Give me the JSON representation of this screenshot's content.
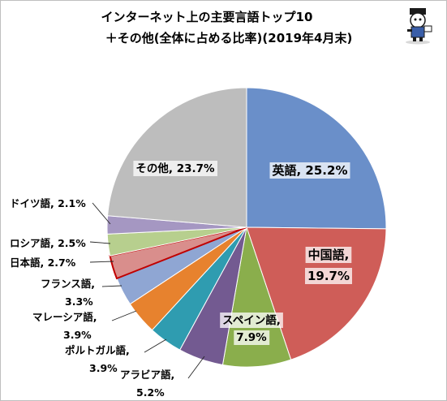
{
  "chart_data": {
    "type": "pie",
    "title": [
      "インターネット上の主要言語トップ10",
      "＋その他(全体に占める比率)(2019年4月末)"
    ],
    "series": [
      {
        "name": "英語",
        "value_label": "25.2%",
        "value": 25.2,
        "color": "#6a8fc9"
      },
      {
        "name": "中国語",
        "value_label": "19.7%",
        "value": 19.7,
        "color": "#cf5d58"
      },
      {
        "name": "スペイン語",
        "value_label": "7.9%",
        "value": 7.9,
        "color": "#8aae4c"
      },
      {
        "name": "アラビア語",
        "value_label": "5.2%",
        "value": 5.2,
        "color": "#735a91"
      },
      {
        "name": "ポルトガル語",
        "value_label": "3.9%",
        "value": 3.9,
        "color": "#2f9cb0"
      },
      {
        "name": "マレーシア語",
        "value_label": "3.9%",
        "value": 3.9,
        "color": "#e7822e"
      },
      {
        "name": "フランス語",
        "value_label": "3.3%",
        "value": 3.3,
        "color": "#8fa6d3"
      },
      {
        "name": "日本語",
        "value_label": "2.7%",
        "value": 2.7,
        "color": "#d98e8c",
        "highlight_color": "#c00000"
      },
      {
        "name": "ロシア語",
        "value_label": "2.5%",
        "value": 2.5,
        "color": "#b7cf8e"
      },
      {
        "name": "ドイツ語",
        "value_label": "2.1%",
        "value": 2.1,
        "color": "#a597c2"
      },
      {
        "name": "その他",
        "value_label": "23.7%",
        "value": 23.7,
        "color": "#bdbdbd"
      }
    ]
  },
  "logo": {
    "icon": "character-mascot-icon"
  }
}
